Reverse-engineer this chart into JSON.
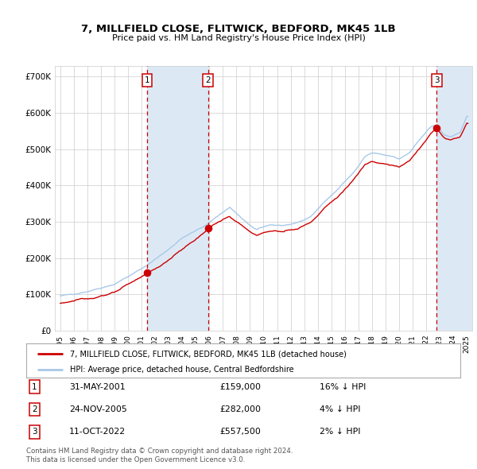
{
  "title": "7, MILLFIELD CLOSE, FLITWICK, BEDFORD, MK45 1LB",
  "subtitle": "Price paid vs. HM Land Registry's House Price Index (HPI)",
  "legend_line1": "7, MILLFIELD CLOSE, FLITWICK, BEDFORD, MK45 1LB (detached house)",
  "legend_line2": "HPI: Average price, detached house, Central Bedfordshire",
  "footer1": "Contains HM Land Registry data © Crown copyright and database right 2024.",
  "footer2": "This data is licensed under the Open Government Licence v3.0.",
  "sales": [
    {
      "num": 1,
      "date": "31-MAY-2001",
      "price": 159000,
      "pct": "16%",
      "dir": "↓",
      "x_year": 2001.42
    },
    {
      "num": 2,
      "date": "24-NOV-2005",
      "price": 282000,
      "pct": "4%",
      "dir": "↓",
      "x_year": 2005.9
    },
    {
      "num": 3,
      "date": "11-OCT-2022",
      "price": 557500,
      "pct": "2%",
      "dir": "↓",
      "x_year": 2022.78
    }
  ],
  "hpi_color": "#a8c8e8",
  "property_color": "#cc0000",
  "sale_marker_color": "#cc0000",
  "vline_color": "#cc0000",
  "shade_color": "#dce9f5",
  "grid_color": "#cccccc",
  "background_color": "#ffffff",
  "xlim": [
    1994.6,
    2025.4
  ],
  "ylim": [
    0,
    730000
  ],
  "yticks": [
    0,
    100000,
    200000,
    300000,
    400000,
    500000,
    600000,
    700000
  ],
  "ytick_labels": [
    "£0",
    "£100K",
    "£200K",
    "£300K",
    "£400K",
    "£500K",
    "£600K",
    "£700K"
  ],
  "xticks": [
    1995,
    1996,
    1997,
    1998,
    1999,
    2000,
    2001,
    2002,
    2003,
    2004,
    2005,
    2006,
    2007,
    2008,
    2009,
    2010,
    2011,
    2012,
    2013,
    2014,
    2015,
    2016,
    2017,
    2018,
    2019,
    2020,
    2021,
    2022,
    2023,
    2024,
    2025
  ]
}
